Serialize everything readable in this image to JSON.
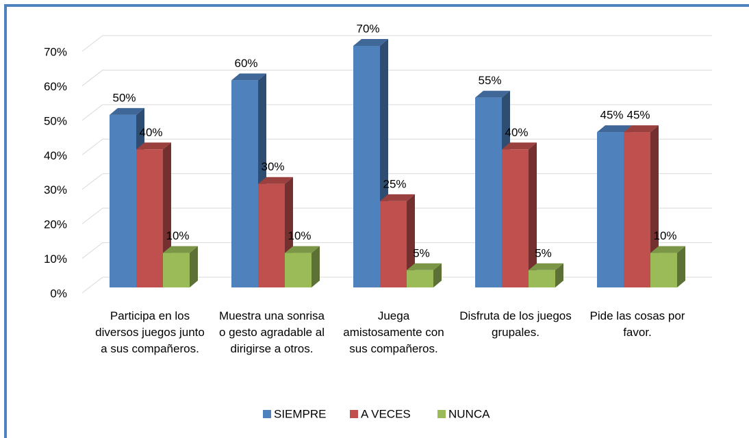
{
  "chart_data": {
    "type": "bar3d",
    "categories": [
      "Participa en los diversos juegos junto a sus compañeros.",
      "Muestra una sonrisa o gesto agradable al dirigirse a otros.",
      "Juega amistosamente con sus compañeros.",
      "Disfruta de los juegos grupales.",
      "Pide las cosas por favor."
    ],
    "series": [
      {
        "name": "SIEMPRE",
        "color": "#4f81bd",
        "values": [
          50,
          60,
          70,
          55,
          45
        ],
        "value_labels": [
          "50%",
          "60%",
          "70%",
          "55%",
          "45%"
        ]
      },
      {
        "name": "A VECES",
        "color": "#c0504d",
        "values": [
          40,
          30,
          25,
          40,
          45
        ],
        "value_labels": [
          "40%",
          "30%",
          "25%",
          "40%",
          "45%"
        ]
      },
      {
        "name": "NUNCA",
        "color": "#9bbb59",
        "values": [
          10,
          10,
          5,
          5,
          10
        ],
        "value_labels": [
          "10%",
          "10%",
          "5%",
          "5%",
          "10%"
        ]
      }
    ],
    "ylim": [
      0,
      70
    ],
    "yticks": [
      {
        "value": 0,
        "label": "0%"
      },
      {
        "value": 10,
        "label": "10%"
      },
      {
        "value": 20,
        "label": "20%"
      },
      {
        "value": 30,
        "label": "30%"
      },
      {
        "value": 40,
        "label": "40%"
      },
      {
        "value": 50,
        "label": "50%"
      },
      {
        "value": 60,
        "label": "60%"
      },
      {
        "value": 70,
        "label": "70%"
      }
    ],
    "grid": true,
    "legend": "bottom"
  }
}
